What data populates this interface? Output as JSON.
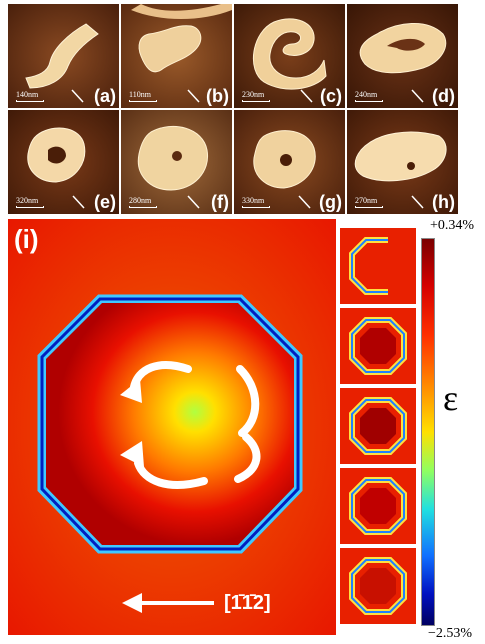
{
  "afm_panels": [
    {
      "label": "(a)",
      "scale": "140nm"
    },
    {
      "label": "(b)",
      "scale": "110nm"
    },
    {
      "label": "(c)",
      "scale": "230nm"
    },
    {
      "label": "(d)",
      "scale": "240nm"
    },
    {
      "label": "(e)",
      "scale": "320nm"
    },
    {
      "label": "(f)",
      "scale": "280nm"
    },
    {
      "label": "(g)",
      "scale": "330nm"
    },
    {
      "label": "(h)",
      "scale": "270nm"
    }
  ],
  "simulation": {
    "label": "(i)",
    "direction_label": "[1̄1̄2]"
  },
  "colorbar": {
    "max": "+0.34%",
    "min": "−2.53%",
    "symbol": "ε"
  },
  "colors": {
    "afm_background": "#5a2a10",
    "afm_island": "#f5dcaa",
    "strain_high": "#e01000",
    "strain_low": "#0010c0"
  }
}
